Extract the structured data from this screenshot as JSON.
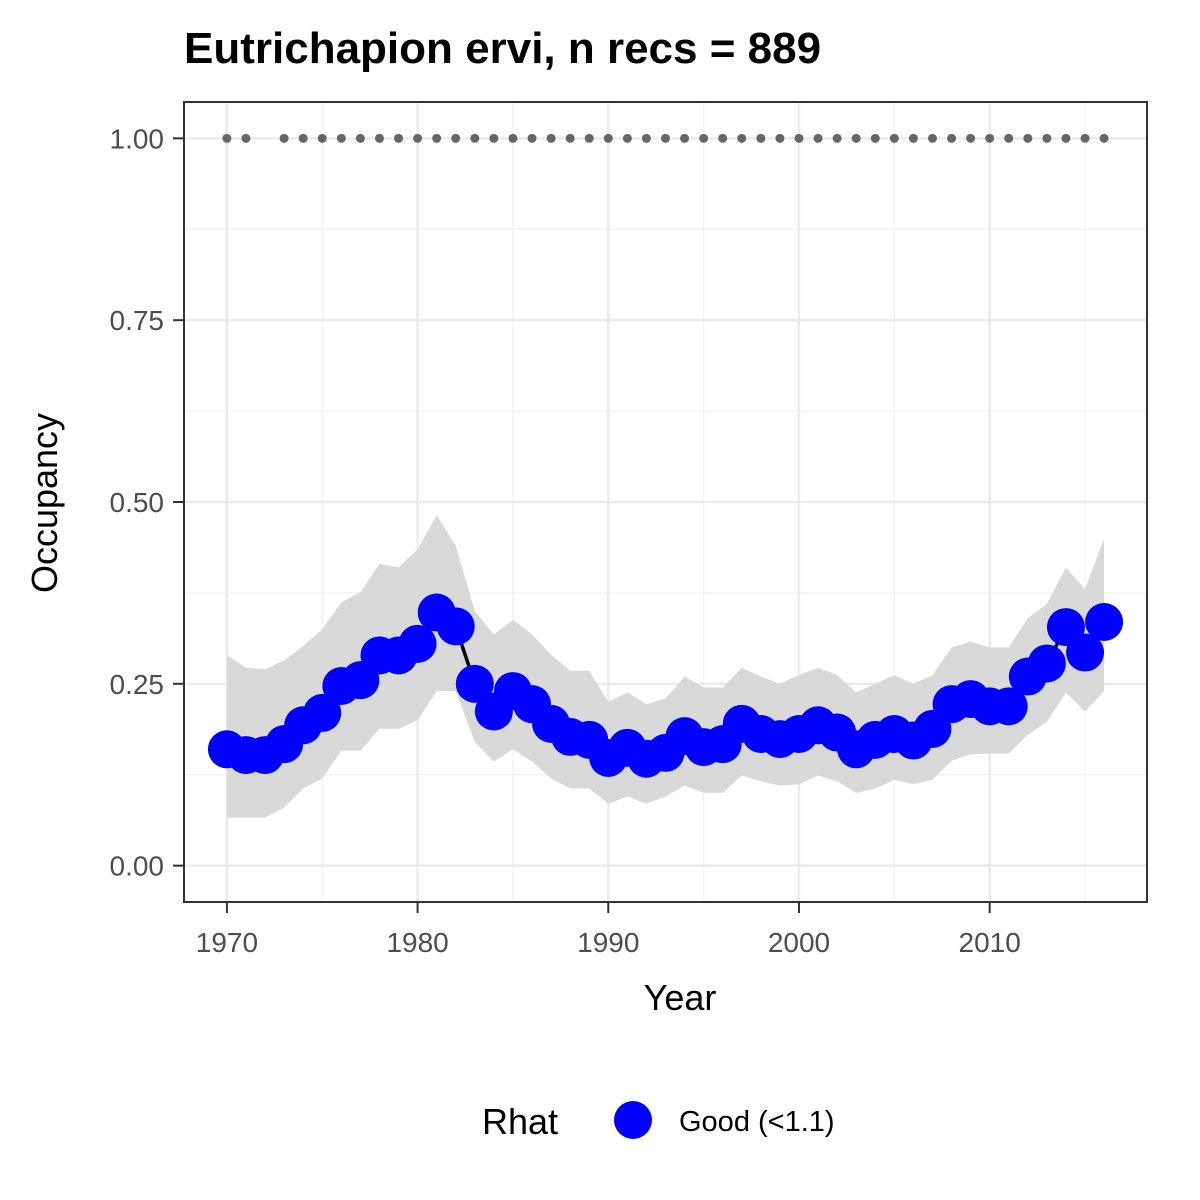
{
  "chart_data": {
    "type": "line",
    "title": "Eutrichapion ervi, n recs = 889",
    "xlabel": "Year",
    "ylabel": "Occupancy",
    "xlim": [
      1967.75,
      2018.25
    ],
    "ylim": [
      -0.05,
      1.05
    ],
    "x_ticks": [
      1970,
      1980,
      1990,
      2000,
      2010
    ],
    "x_tick_labels": [
      "1970",
      "1980",
      "1990",
      "2000",
      "2010"
    ],
    "y_ticks": [
      0,
      0.25,
      0.5,
      0.75,
      1.0
    ],
    "y_tick_labels": [
      "0.00",
      "0.25",
      "0.50",
      "0.75",
      "1.00"
    ],
    "grid": true,
    "legend": {
      "title": "Rhat",
      "position": "bottom",
      "entries": [
        {
          "label": "Good (<1.1)",
          "color": "#0000ff"
        }
      ]
    },
    "colors": {
      "points": "#0000ff",
      "line": "#000000",
      "ribbon": "#d9d9d9",
      "record_dots": "#666666"
    },
    "series": [
      {
        "name": "Good (<1.1)",
        "x": [
          1970,
          1971,
          1972,
          1973,
          1974,
          1975,
          1976,
          1977,
          1978,
          1979,
          1980,
          1981,
          1982,
          1983,
          1984,
          1985,
          1986,
          1987,
          1988,
          1989,
          1990,
          1991,
          1992,
          1993,
          1994,
          1995,
          1996,
          1997,
          1998,
          1999,
          2000,
          2001,
          2002,
          2003,
          2004,
          2005,
          2006,
          2007,
          2008,
          2009,
          2010,
          2011,
          2012,
          2013,
          2014,
          2015,
          2016
        ],
        "y": [
          0.16,
          0.152,
          0.152,
          0.167,
          0.193,
          0.21,
          0.247,
          0.255,
          0.289,
          0.289,
          0.305,
          0.348,
          0.329,
          0.25,
          0.212,
          0.24,
          0.222,
          0.195,
          0.177,
          0.173,
          0.148,
          0.162,
          0.147,
          0.155,
          0.178,
          0.163,
          0.167,
          0.195,
          0.181,
          0.174,
          0.181,
          0.193,
          0.183,
          0.16,
          0.173,
          0.181,
          0.172,
          0.188,
          0.222,
          0.229,
          0.219,
          0.219,
          0.26,
          0.278,
          0.328,
          0.293,
          0.335
        ],
        "lower": [
          0.066,
          0.066,
          0.066,
          0.08,
          0.106,
          0.12,
          0.158,
          0.158,
          0.188,
          0.188,
          0.2,
          0.24,
          0.24,
          0.17,
          0.143,
          0.16,
          0.143,
          0.12,
          0.106,
          0.106,
          0.085,
          0.095,
          0.085,
          0.095,
          0.11,
          0.1,
          0.1,
          0.124,
          0.116,
          0.11,
          0.112,
          0.124,
          0.116,
          0.1,
          0.106,
          0.118,
          0.112,
          0.118,
          0.144,
          0.153,
          0.154,
          0.154,
          0.18,
          0.198,
          0.238,
          0.212,
          0.24
        ],
        "upper": [
          0.29,
          0.272,
          0.27,
          0.282,
          0.302,
          0.325,
          0.362,
          0.376,
          0.415,
          0.41,
          0.435,
          0.482,
          0.44,
          0.35,
          0.318,
          0.338,
          0.318,
          0.29,
          0.268,
          0.268,
          0.225,
          0.238,
          0.222,
          0.23,
          0.26,
          0.245,
          0.245,
          0.272,
          0.26,
          0.25,
          0.262,
          0.272,
          0.262,
          0.238,
          0.25,
          0.262,
          0.25,
          0.262,
          0.3,
          0.308,
          0.3,
          0.3,
          0.34,
          0.36,
          0.41,
          0.38,
          0.45
        ]
      }
    ],
    "record_years": [
      1970,
      1971,
      1973,
      1974,
      1975,
      1976,
      1977,
      1978,
      1979,
      1980,
      1981,
      1982,
      1983,
      1984,
      1985,
      1986,
      1987,
      1988,
      1989,
      1990,
      1991,
      1992,
      1993,
      1994,
      1995,
      1996,
      1997,
      1998,
      1999,
      2000,
      2001,
      2002,
      2003,
      2004,
      2005,
      2006,
      2007,
      2008,
      2009,
      2010,
      2011,
      2012,
      2013,
      2014,
      2015,
      2016
    ],
    "record_value": 1.0
  }
}
